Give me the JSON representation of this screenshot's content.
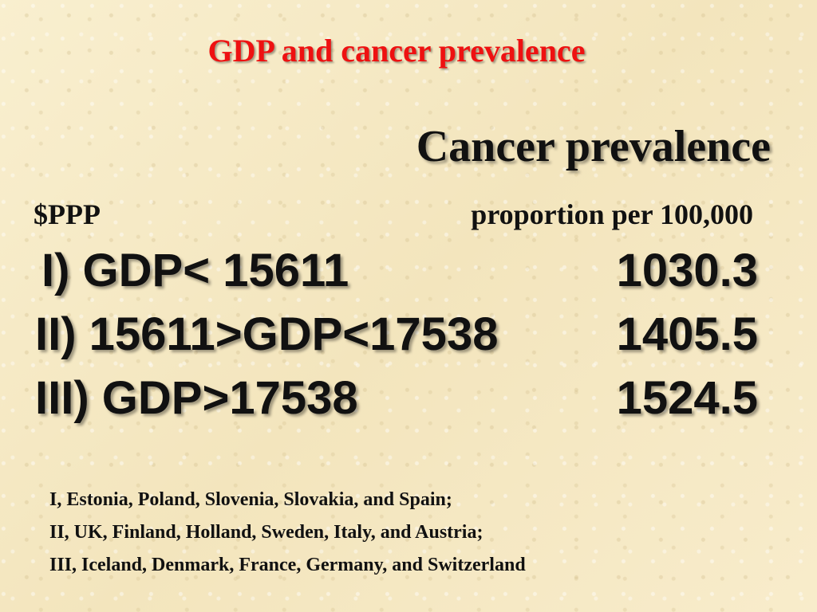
{
  "slide": {
    "title": "GDP and cancer prevalence",
    "right_heading": "Cancer prevalence",
    "left_column_label": "$PPP",
    "right_column_label": "proportion per 100,000",
    "rows": [
      {
        "label": "I) GDP< 15611",
        "value": "1030.3"
      },
      {
        "label": "II) 15611>GDP<17538",
        "value": "1405.5"
      },
      {
        "label": "III) GDP>17538",
        "value": "1524.5"
      }
    ],
    "notes": [
      "I, Estonia, Poland, Slovenia, Slovakia, and Spain;",
      "II, UK, Finland, Holland, Sweden, Italy, and Austria;",
      "III, Iceland, Denmark, France, Germany, and Switzerland"
    ]
  },
  "colors": {
    "background": "#f7ecc9",
    "title": "#ee1111",
    "text": "#111111"
  }
}
